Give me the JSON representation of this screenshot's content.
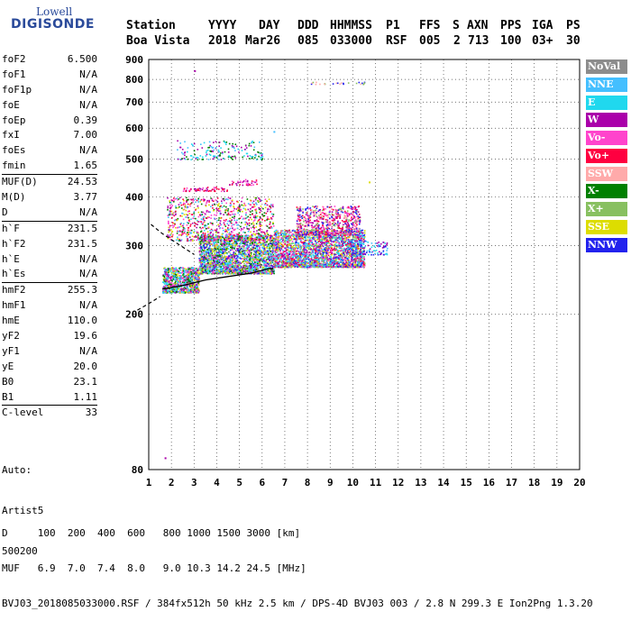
{
  "logo": {
    "line1": "Lowell",
    "line2": "DIGISONDE"
  },
  "header": {
    "labels": [
      "Station",
      "YYYY",
      "DAY",
      "DDD",
      "HHMMSS",
      "P1",
      "FFS",
      "S",
      "AXN",
      "PPS",
      "IGA",
      "PS"
    ],
    "values": [
      "Boa Vista",
      "2018",
      "Mar26",
      "085",
      "033000",
      "RSF",
      "005",
      "2",
      "713",
      "100",
      "03+",
      "30"
    ]
  },
  "params": [
    [
      {
        "k": "foF2",
        "v": "6.500"
      },
      {
        "k": "foF1",
        "v": "N/A"
      },
      {
        "k": "foF1p",
        "v": "N/A"
      },
      {
        "k": "foE",
        "v": "N/A"
      },
      {
        "k": "foEp",
        "v": "0.39"
      },
      {
        "k": "fxI",
        "v": "7.00"
      },
      {
        "k": "foEs",
        "v": "N/A"
      },
      {
        "k": "fmin",
        "v": "1.65"
      }
    ],
    [
      {
        "k": "MUF(D)",
        "v": "24.53"
      },
      {
        "k": "M(D)",
        "v": "3.77"
      },
      {
        "k": "D",
        "v": "N/A"
      }
    ],
    [
      {
        "k": "h`F",
        "v": "231.5"
      },
      {
        "k": "h`F2",
        "v": "231.5"
      },
      {
        "k": "h`E",
        "v": "N/A"
      },
      {
        "k": "h`Es",
        "v": "N/A"
      }
    ],
    [
      {
        "k": "hmF2",
        "v": "255.3"
      },
      {
        "k": "hmF1",
        "v": "N/A"
      },
      {
        "k": "hmE",
        "v": "110.0"
      },
      {
        "k": "yF2",
        "v": "19.6"
      },
      {
        "k": "yF1",
        "v": "N/A"
      },
      {
        "k": "yE",
        "v": "20.0"
      },
      {
        "k": "B0",
        "v": "23.1"
      },
      {
        "k": "B1",
        "v": "1.11"
      }
    ],
    [
      {
        "k": "C-level",
        "v": "33"
      }
    ]
  ],
  "auto": {
    "line1": "Auto:",
    "line2": "Artist5",
    "line3": "500200"
  },
  "legend": [
    {
      "label": "NoVal",
      "color": "#8c8c8c"
    },
    {
      "label": "NNE",
      "color": "#44bfff"
    },
    {
      "label": "E",
      "color": "#20d8ee"
    },
    {
      "label": "W",
      "color": "#aa00aa"
    },
    {
      "label": "Vo-",
      "color": "#ff44cc"
    },
    {
      "label": "Vo+",
      "color": "#ff0040"
    },
    {
      "label": "SSW",
      "color": "#ffaaaa"
    },
    {
      "label": "X-",
      "color": "#008000"
    },
    {
      "label": "X+",
      "color": "#88c060"
    },
    {
      "label": "SSE",
      "color": "#dddd00"
    },
    {
      "label": "NNW",
      "color": "#2222ee"
    }
  ],
  "chart_data": {
    "type": "scatter",
    "xlim": [
      1,
      20
    ],
    "ylim": [
      80,
      900
    ],
    "x_ticks": [
      1,
      2,
      3,
      4,
      5,
      6,
      7,
      8,
      9,
      10,
      11,
      12,
      13,
      14,
      15,
      16,
      17,
      18,
      19,
      20
    ],
    "y_ticks": [
      80,
      200,
      300,
      400,
      500,
      600,
      700,
      800,
      900
    ],
    "y_log": true,
    "grid": true,
    "clusters": [
      {
        "fx": [
          1.6,
          3.2
        ],
        "fy": [
          228,
          265
        ],
        "n": 900,
        "colors": [
          1,
          2,
          3,
          4,
          9,
          7
        ]
      },
      {
        "fx": [
          3.2,
          6.5
        ],
        "fy": [
          255,
          320
        ],
        "n": 2200,
        "colors": [
          1,
          2,
          3,
          4,
          8,
          9,
          10,
          7
        ]
      },
      {
        "fx": [
          6.5,
          10.5
        ],
        "fy": [
          265,
          330
        ],
        "n": 2600,
        "colors": [
          1,
          2,
          3,
          4,
          5,
          8,
          9,
          10
        ]
      },
      {
        "fx": [
          7.5,
          10.3
        ],
        "fy": [
          320,
          380
        ],
        "n": 700,
        "colors": [
          3,
          4,
          5,
          6,
          8,
          10
        ]
      },
      {
        "fx": [
          1.8,
          6.5
        ],
        "fy": [
          310,
          400
        ],
        "n": 900,
        "colors": [
          3,
          4,
          5,
          7,
          9,
          1
        ]
      },
      {
        "fx": [
          2.5,
          4.5
        ],
        "fy": [
          415,
          425
        ],
        "n": 60,
        "colors": [
          3,
          4,
          5
        ]
      },
      {
        "fx": [
          4.5,
          5.8
        ],
        "fy": [
          430,
          445
        ],
        "n": 40,
        "colors": [
          3,
          4,
          5
        ]
      },
      {
        "fx": [
          2.2,
          6.0
        ],
        "fy": [
          500,
          560
        ],
        "n": 180,
        "colors": [
          1,
          2,
          7,
          3
        ]
      },
      {
        "fx": [
          8.0,
          10.5
        ],
        "fy": [
          780,
          790
        ],
        "n": 25,
        "colors": [
          6,
          8,
          10
        ]
      },
      {
        "fx": [
          9.5,
          11.5
        ],
        "fy": [
          285,
          310
        ],
        "n": 120,
        "colors": [
          2,
          1,
          3,
          10
        ]
      }
    ],
    "profile_solid": [
      [
        1.6,
        232
      ],
      [
        2.5,
        237
      ],
      [
        3.5,
        245
      ],
      [
        4.5,
        250
      ],
      [
        5.5,
        255
      ],
      [
        6.3,
        262
      ],
      [
        6.5,
        262
      ]
    ],
    "profile_dashed": [
      [
        0.5,
        205
      ],
      [
        1.0,
        213
      ],
      [
        1.5,
        222
      ]
    ],
    "profile_top_dashed": [
      [
        1.1,
        340
      ],
      [
        1.6,
        322
      ],
      [
        2.4,
        300
      ],
      [
        3.0,
        285
      ]
    ]
  },
  "footer": {
    "line1": "D     100  200  400  600   800 1000 1500 3000 [km]",
    "line2": "MUF   6.9  7.0  7.4  8.0   9.0 10.3 14.2 24.5 [MHz]",
    "line3": "BVJ03_2018085033000.RSF / 384fx512h 50 kHz 2.5 km / DPS-4D BVJ03 003 / 2.8 N 299.3 E Ion2Png 1.3.20"
  }
}
